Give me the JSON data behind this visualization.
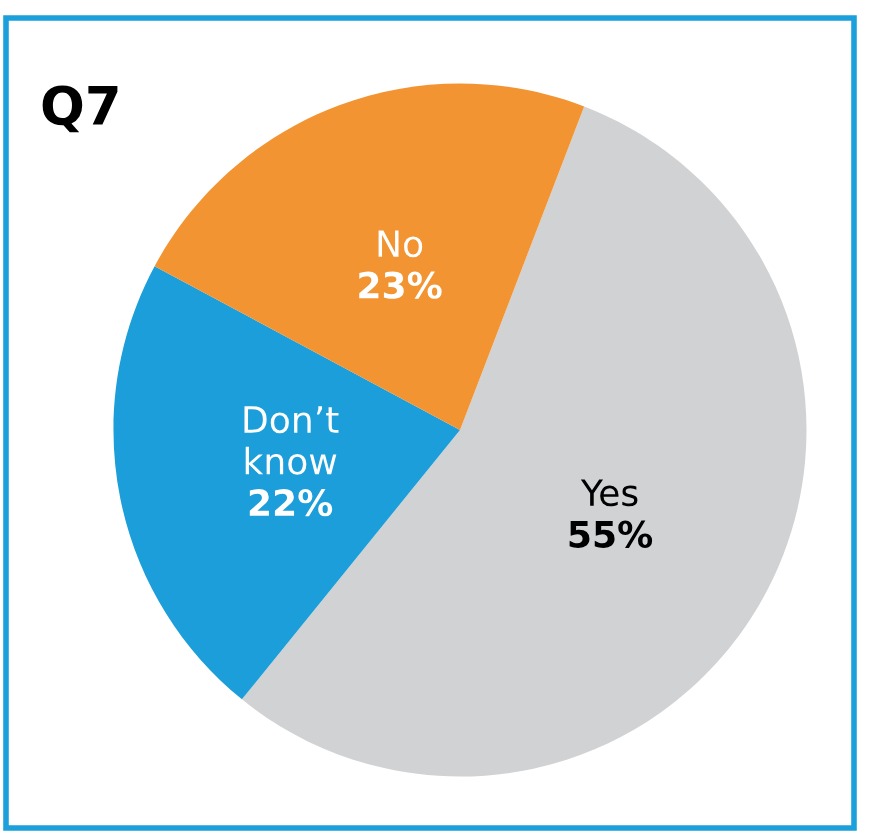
{
  "chart_data": {
    "type": "pie",
    "title": "Q7",
    "categories": [
      "Yes",
      "Don’t know",
      "No"
    ],
    "values": [
      55,
      22,
      23
    ],
    "value_labels": [
      "55%",
      "22%",
      "23%"
    ],
    "colors": [
      "#d0d2d4",
      "#1b9ed9",
      "#f39432"
    ],
    "legend": false
  }
}
